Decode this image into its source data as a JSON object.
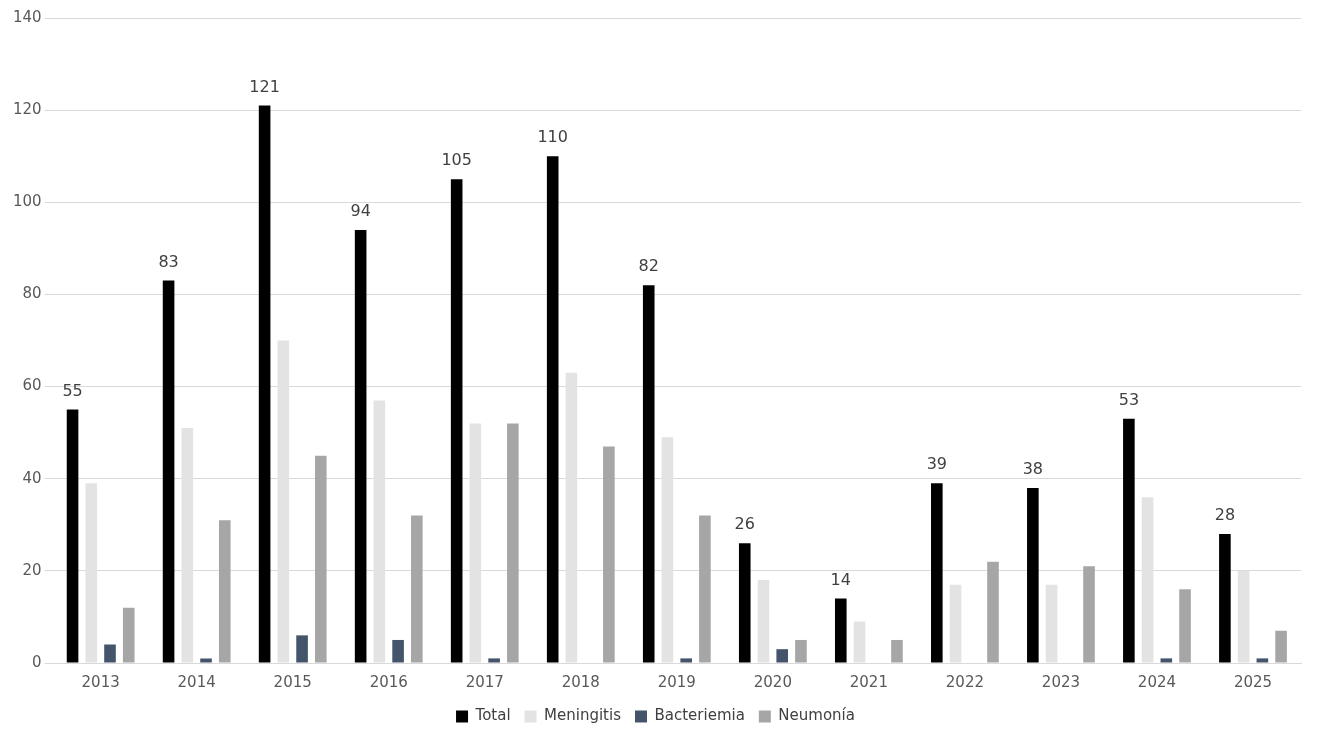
{
  "chart_data": {
    "type": "bar",
    "categories": [
      "2013",
      "2014",
      "2015",
      "2016",
      "2017",
      "2018",
      "2019",
      "2020",
      "2021",
      "2022",
      "2023",
      "2024",
      "2025"
    ],
    "series": [
      {
        "name": "Total",
        "color": "#000000",
        "values": [
          55,
          83,
          121,
          94,
          105,
          110,
          82,
          26,
          14,
          39,
          38,
          53,
          28
        ],
        "value_labels": [
          "55",
          "83",
          "121",
          "94",
          "105",
          "110",
          "82",
          "26",
          "14",
          "39",
          "38",
          "53",
          "28"
        ]
      },
      {
        "name": "Meningitis",
        "color": "#e3e3e3",
        "values": [
          39,
          51,
          70,
          57,
          52,
          63,
          49,
          18,
          9,
          17,
          17,
          36,
          20
        ]
      },
      {
        "name": "Bacteriemia",
        "color": "#44546a",
        "values": [
          4,
          1,
          6,
          5,
          1,
          0,
          1,
          3,
          0,
          0,
          0,
          1,
          1
        ]
      },
      {
        "name": "Neumonía",
        "color": "#a6a6a6",
        "values": [
          12,
          31,
          45,
          32,
          52,
          47,
          32,
          5,
          5,
          22,
          21,
          16,
          7
        ]
      }
    ],
    "ylim": [
      0,
      140
    ],
    "yticks": [
      0,
      20,
      40,
      60,
      80,
      100,
      120,
      140
    ],
    "grid": "y",
    "legend": "bottom"
  }
}
